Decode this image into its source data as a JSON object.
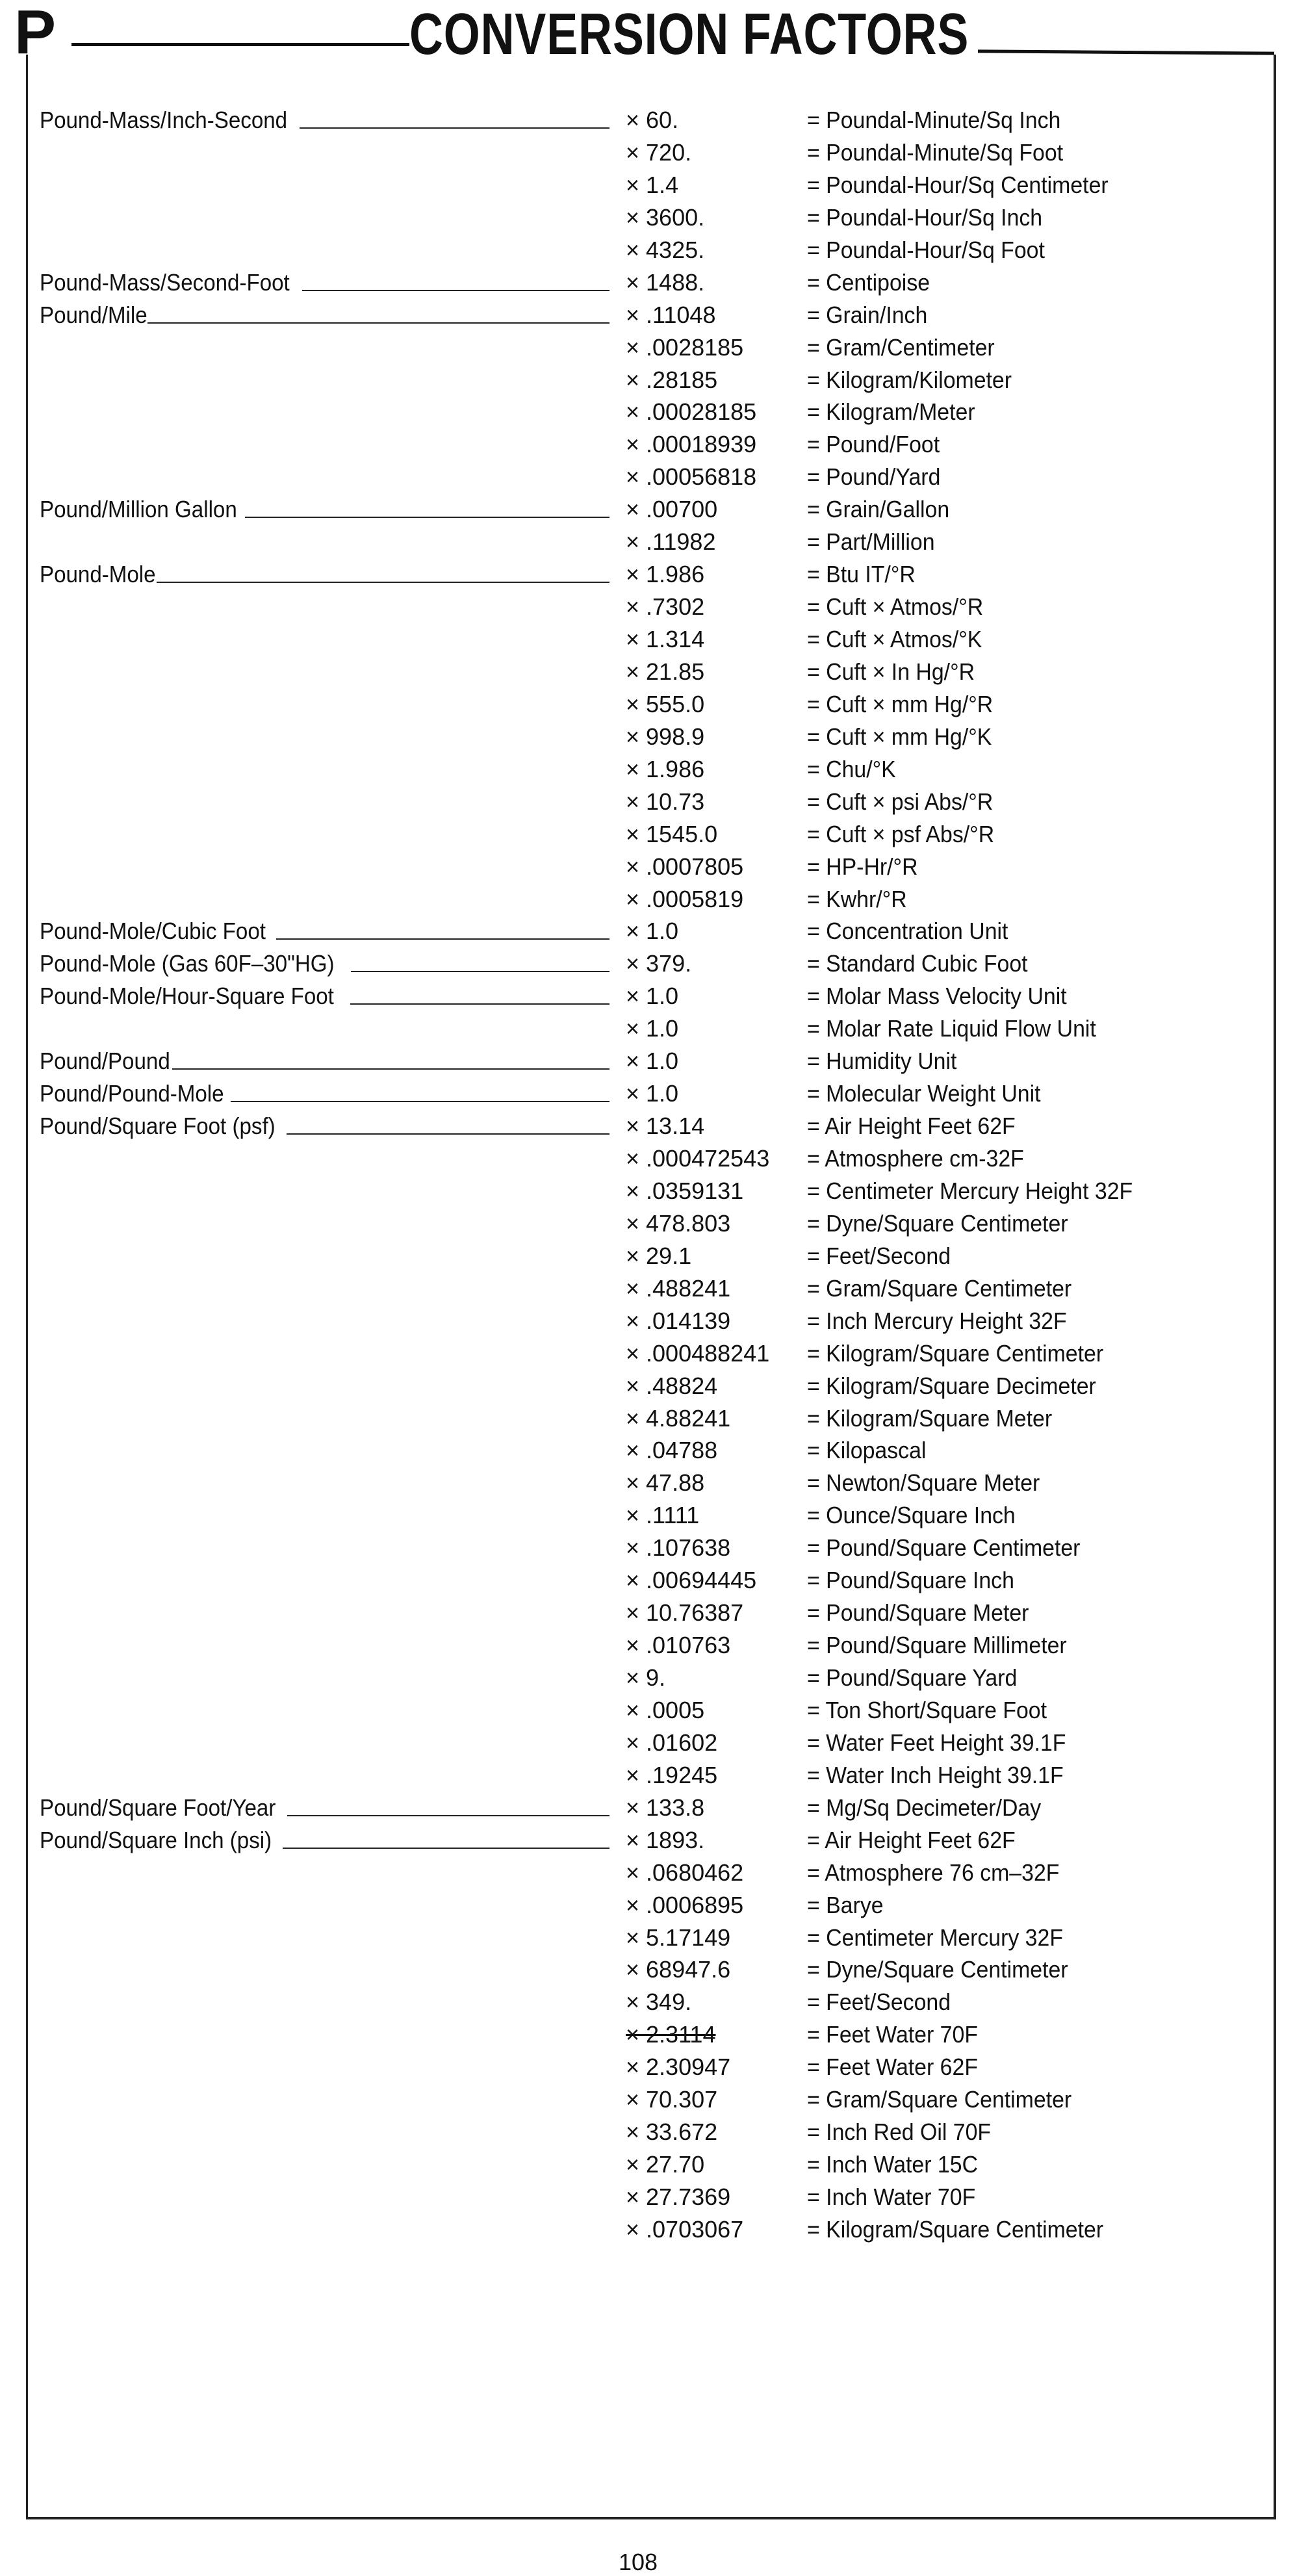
{
  "header": {
    "letter": "P",
    "title": "CONVERSION FACTORS"
  },
  "groups": [
    {
      "unit": "Pound-Mass/Inch-Second",
      "rows": [
        {
          "factor": "× 60.",
          "result": "= Poundal-Minute/Sq Inch"
        },
        {
          "factor": "× 720.",
          "result": "= Poundal-Minute/Sq Foot"
        },
        {
          "factor": "× 1.4",
          "result": "= Poundal-Hour/Sq Centimeter"
        },
        {
          "factor": "× 3600.",
          "result": "= Poundal-Hour/Sq Inch"
        },
        {
          "factor": "× 4325.",
          "result": "= Poundal-Hour/Sq Foot"
        }
      ]
    },
    {
      "unit": "Pound-Mass/Second-Foot",
      "rows": [
        {
          "factor": "× 1488.",
          "result": "= Centipoise"
        }
      ]
    },
    {
      "unit": "Pound/Mile",
      "rows": [
        {
          "factor": "× .11048",
          "result": "= Grain/Inch"
        },
        {
          "factor": "× .0028185",
          "result": "= Gram/Centimeter"
        },
        {
          "factor": "× .28185",
          "result": "= Kilogram/Kilometer"
        },
        {
          "factor": "× .00028185",
          "result": "= Kilogram/Meter"
        },
        {
          "factor": "× .00018939",
          "result": "= Pound/Foot"
        },
        {
          "factor": "× .00056818",
          "result": "= Pound/Yard"
        }
      ]
    },
    {
      "unit": "Pound/Million Gallon",
      "rows": [
        {
          "factor": "× .00700",
          "result": "= Grain/Gallon"
        },
        {
          "factor": "× .11982",
          "result": "= Part/Million"
        }
      ]
    },
    {
      "unit": "Pound-Mole",
      "rows": [
        {
          "factor": "× 1.986",
          "result": "= Btu IT/°R"
        },
        {
          "factor": "× .7302",
          "result": "= Cuft × Atmos/°R"
        },
        {
          "factor": "× 1.314",
          "result": "= Cuft × Atmos/°K"
        },
        {
          "factor": "× 21.85",
          "result": "= Cuft × In Hg/°R"
        },
        {
          "factor": "× 555.0",
          "result": "= Cuft × mm Hg/°R"
        },
        {
          "factor": "× 998.9",
          "result": "= Cuft × mm Hg/°K"
        },
        {
          "factor": "× 1.986",
          "result": "= Chu/°K"
        },
        {
          "factor": "× 10.73",
          "result": "= Cuft × psi Abs/°R"
        },
        {
          "factor": "× 1545.0",
          "result": "= Cuft × psf Abs/°R"
        },
        {
          "factor": "× .0007805",
          "result": "= HP-Hr/°R"
        },
        {
          "factor": "× .0005819",
          "result": "= Kwhr/°R"
        }
      ]
    },
    {
      "unit": "Pound-Mole/Cubic Foot",
      "rows": [
        {
          "factor": "× 1.0",
          "result": "= Concentration Unit"
        }
      ]
    },
    {
      "unit": "Pound-Mole (Gas 60F–30\"HG)",
      "rows": [
        {
          "factor": "× 379.",
          "result": "= Standard Cubic Foot"
        }
      ]
    },
    {
      "unit": "Pound-Mole/Hour-Square Foot",
      "rows": [
        {
          "factor": "× 1.0",
          "result": "= Molar Mass Velocity Unit"
        },
        {
          "factor": "× 1.0",
          "result": "= Molar Rate Liquid Flow Unit"
        }
      ]
    },
    {
      "unit": "Pound/Pound",
      "rows": [
        {
          "factor": "× 1.0",
          "result": "= Humidity Unit"
        }
      ]
    },
    {
      "unit": "Pound/Pound-Mole",
      "rows": [
        {
          "factor": "× 1.0",
          "result": "= Molecular Weight Unit"
        }
      ]
    },
    {
      "unit": "Pound/Square Foot (psf)",
      "rows": [
        {
          "factor": "× 13.14",
          "result": "= Air Height Feet 62F"
        },
        {
          "factor": "× .000472543",
          "result": "= Atmosphere cm-32F"
        },
        {
          "factor": "× .0359131",
          "result": "= Centimeter Mercury Height 32F"
        },
        {
          "factor": "× 478.803",
          "result": "= Dyne/Square Centimeter"
        },
        {
          "factor": "× 29.1",
          "result": "= Feet/Second"
        },
        {
          "factor": "× .488241",
          "result": "= Gram/Square Centimeter"
        },
        {
          "factor": "× .014139",
          "result": "= Inch Mercury Height 32F"
        },
        {
          "factor": "× .000488241",
          "result": "= Kilogram/Square Centimeter"
        },
        {
          "factor": "× .48824",
          "result": "= Kilogram/Square Decimeter"
        },
        {
          "factor": "× 4.88241",
          "result": "= Kilogram/Square Meter"
        },
        {
          "factor": "× .04788",
          "result": "= Kilopascal"
        },
        {
          "factor": "× 47.88",
          "result": "= Newton/Square Meter"
        },
        {
          "factor": "× .1111",
          "result": "= Ounce/Square Inch"
        },
        {
          "factor": "× .107638",
          "result": "= Pound/Square Centimeter"
        },
        {
          "factor": "× .00694445",
          "result": "= Pound/Square Inch"
        },
        {
          "factor": "× 10.76387",
          "result": "= Pound/Square Meter"
        },
        {
          "factor": "× .010763",
          "result": "= Pound/Square Millimeter"
        },
        {
          "factor": "× 9.",
          "result": "= Pound/Square Yard"
        },
        {
          "factor": "× .0005",
          "result": "= Ton Short/Square Foot"
        },
        {
          "factor": "× .01602",
          "result": "= Water Feet Height 39.1F"
        },
        {
          "factor": "× .19245",
          "result": "= Water Inch Height 39.1F"
        }
      ]
    },
    {
      "unit": "Pound/Square Foot/Year",
      "rows": [
        {
          "factor": "× 133.8",
          "result": "= Mg/Sq Decimeter/Day"
        }
      ]
    },
    {
      "unit": "Pound/Square Inch (psi)",
      "rows": [
        {
          "factor": "× 1893.",
          "result": "= Air Height Feet 62F"
        },
        {
          "factor": "× .0680462",
          "result": "= Atmosphere 76 cm–32F"
        },
        {
          "factor": "× .0006895",
          "result": "= Barye"
        },
        {
          "factor": "× 5.17149",
          "result": "= Centimeter Mercury 32F"
        },
        {
          "factor": "× 68947.6",
          "result": "= Dyne/Square Centimeter"
        },
        {
          "factor": "× 349.",
          "result": "= Feet/Second"
        },
        {
          "factor": "× 2.3114",
          "result": "= Feet Water 70F",
          "struck": true
        },
        {
          "factor": "× 2.30947",
          "result": "= Feet Water 62F"
        },
        {
          "factor": "× 70.307",
          "result": "= Gram/Square Centimeter"
        },
        {
          "factor": "× 33.672",
          "result": "= Inch Red Oil 70F"
        },
        {
          "factor": "× 27.70",
          "result": "= Inch Water 15C"
        },
        {
          "factor": "× 27.7369",
          "result": "= Inch Water 70F"
        },
        {
          "factor": "× .0703067",
          "result": "= Kilogram/Square Centimeter"
        }
      ]
    }
  ],
  "footer": {
    "page_number": "108"
  }
}
